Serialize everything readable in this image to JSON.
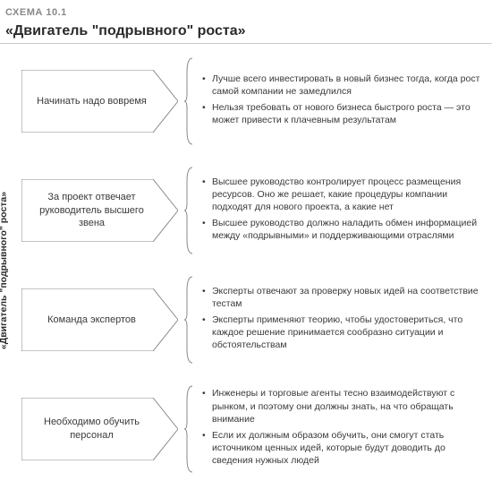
{
  "schema_label": "СХЕМА 10.1",
  "title": "«Двигатель \"подрывного\" роста»",
  "vertical_label": "«Двигатель \"подрывного\" роста»",
  "colors": {
    "background": "#ffffff",
    "text": "#3a3a3a",
    "label": "#888888",
    "border": "#888888",
    "divider": "#cccccc"
  },
  "typography": {
    "schema_label_fontsize": 11,
    "title_fontsize": 16,
    "body_fontsize": 10.5,
    "arrow_label_fontsize": 11,
    "vertical_label_fontsize": 10.5
  },
  "arrow_shape": {
    "width": 175,
    "height": 70,
    "tip_width": 28,
    "stroke": "#888888",
    "stroke_width": 1,
    "fill": "#ffffff"
  },
  "rows": [
    {
      "label": "Начинать надо вовремя",
      "bullets": [
        "Лучше всего инвестировать в новый бизнес тогда, когда рост самой компании не замедлился",
        "Нельзя требовать от нового бизнеса быстрого роста — это может привести к плачевным результатам"
      ]
    },
    {
      "label": "За проект отвечает руководитель высшего звена",
      "bullets": [
        "Высшее руководство контролирует процесс размещения ресурсов. Оно же решает, какие процедуры компании подходят для нового проекта, а какие нет",
        "Высшее руководство должно наладить обмен информацией между «подрывными» и поддерживающими отраслями"
      ]
    },
    {
      "label": "Команда экспертов",
      "bullets": [
        "Эксперты отвечают за проверку новых идей на соответствие тестам",
        "Эксперты применяют теорию, чтобы удостове­риться, что каждое решение принимается сообразно ситуации и обстоятельствам"
      ]
    },
    {
      "label": "Необходимо обучить персонал",
      "bullets": [
        "Инженеры и торговые агенты тесно взаимодей­ствуют с рынком, и поэтому они должны знать, на что обращать внимание",
        "Если их должным образом обучить, они смогут стать источником ценных идей, которые будут доводить до сведения нужных людей"
      ]
    }
  ]
}
